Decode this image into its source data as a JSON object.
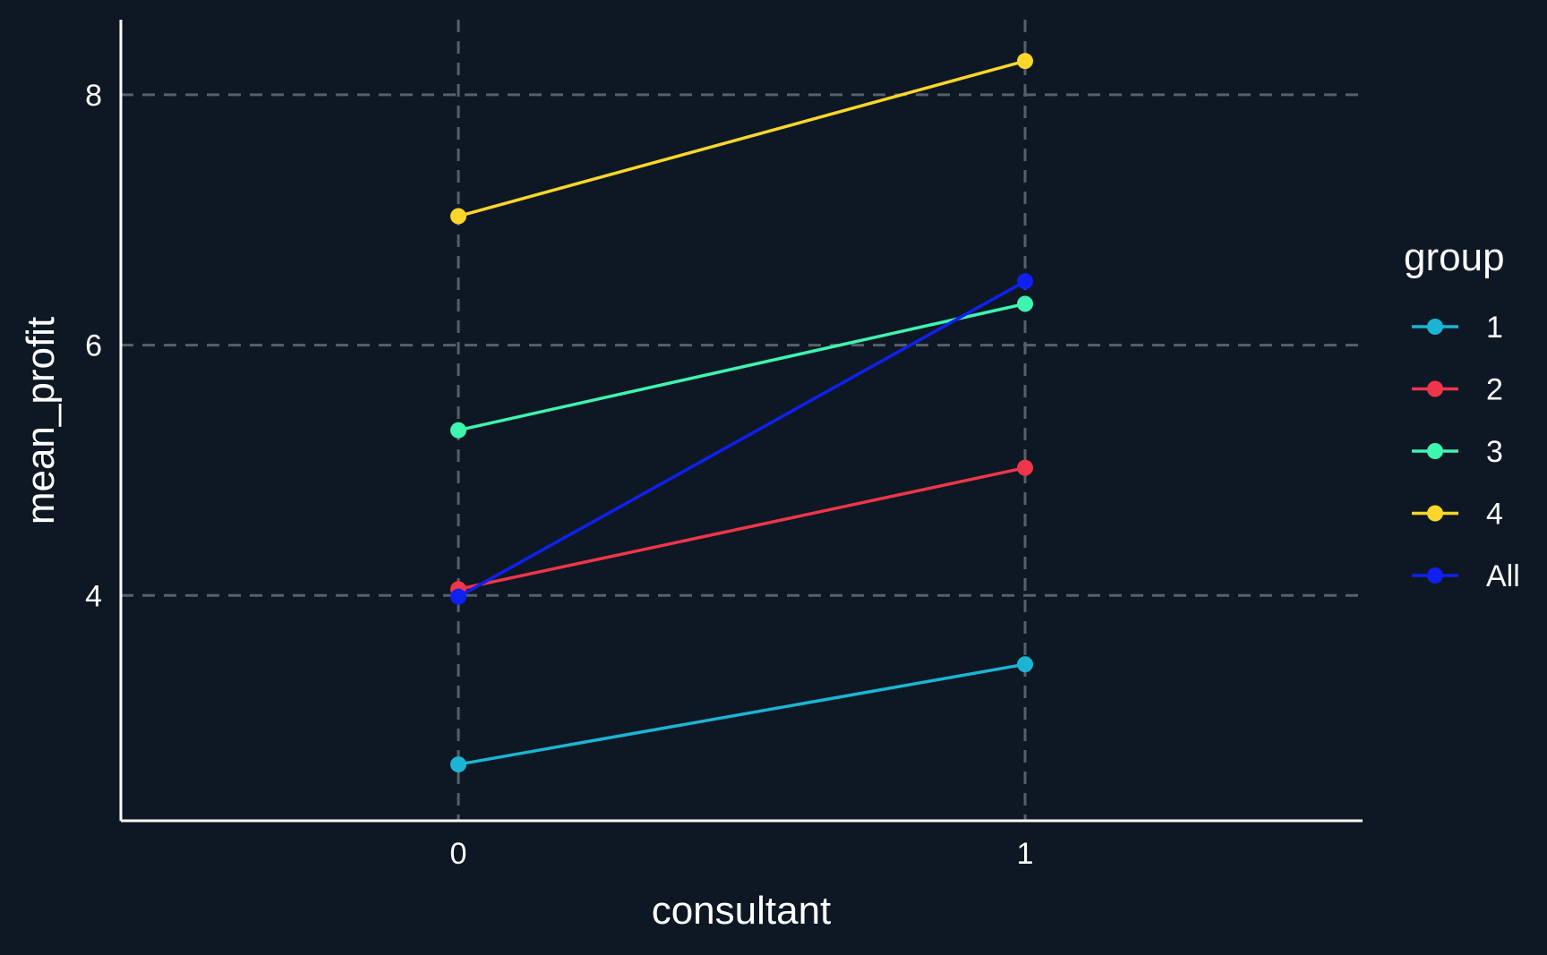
{
  "chart_data": {
    "type": "line",
    "xlabel": "consultant",
    "ylabel": "mean_profit",
    "x_categories": [
      "0",
      "1"
    ],
    "y_ticks": [
      4,
      6,
      8
    ],
    "ylim": [
      2.2,
      8.6
    ],
    "grid": true,
    "legend": {
      "title": "group",
      "position": "right"
    },
    "series": [
      {
        "name": "1",
        "color": "#1cb4d4",
        "values": [
          2.65,
          3.45
        ]
      },
      {
        "name": "2",
        "color": "#f0354a",
        "values": [
          4.05,
          5.02
        ]
      },
      {
        "name": "3",
        "color": "#3ef5b0",
        "values": [
          5.32,
          6.33
        ]
      },
      {
        "name": "4",
        "color": "#fcd62a",
        "values": [
          7.03,
          8.27
        ]
      },
      {
        "name": "All",
        "color": "#1020f0",
        "values": [
          3.99,
          6.51
        ]
      }
    ]
  }
}
